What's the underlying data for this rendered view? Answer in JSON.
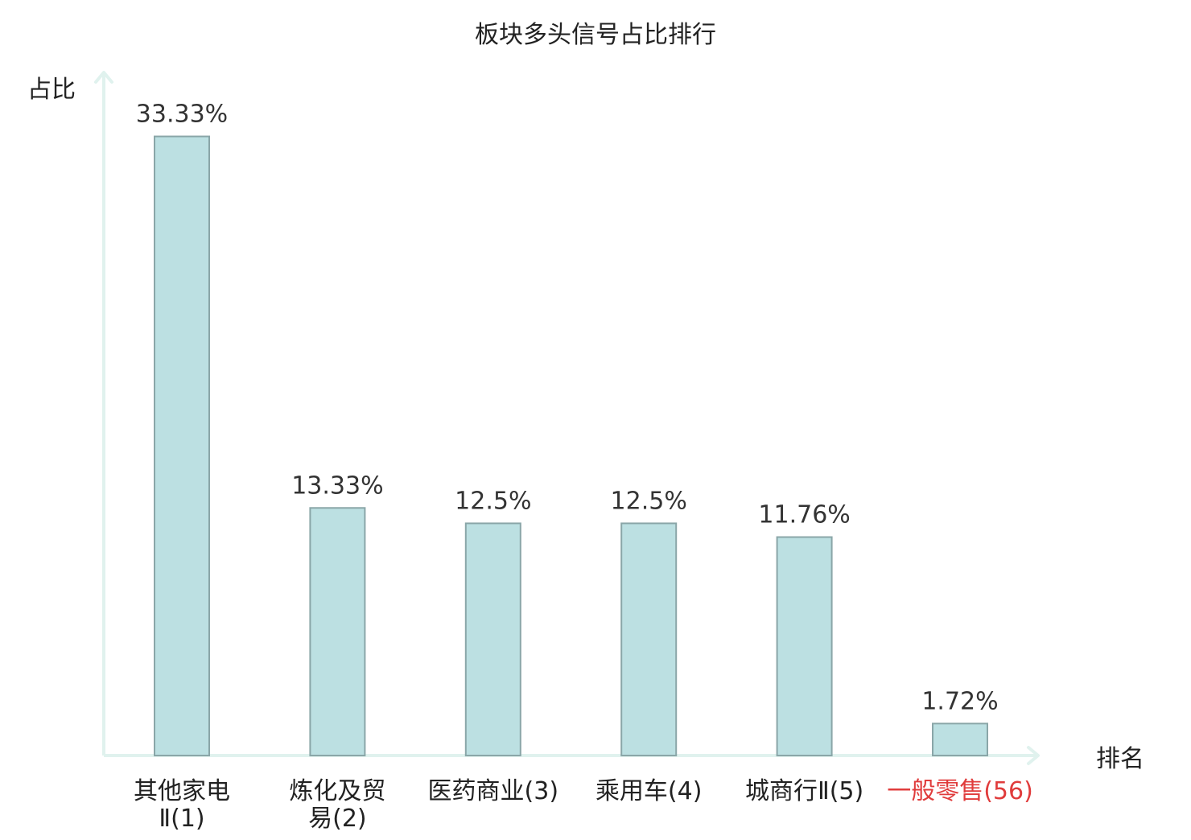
{
  "chart_data": {
    "type": "bar",
    "title": "板块多头信号占比排行",
    "xlabel": "排名",
    "ylabel": "占比",
    "categories": [
      [
        "其他家电",
        "Ⅱ(1)"
      ],
      [
        "炼化及贸",
        "易(2)"
      ],
      [
        "医药商业(3)"
      ],
      [
        "乘用车(4)"
      ],
      [
        "城商行Ⅱ(5)"
      ],
      [
        "一般零售(56)"
      ]
    ],
    "values": [
      33.33,
      13.33,
      12.5,
      12.5,
      11.76,
      1.72
    ],
    "value_labels": [
      "33.33%",
      "13.33%",
      "12.5%",
      "12.5%",
      "11.76%",
      "1.72%"
    ],
    "highlight_index": 5,
    "ylim": [
      0,
      35
    ],
    "grid": false,
    "legend": "none"
  },
  "colors": {
    "bar_fill": "#bce0e2",
    "bar_stroke": "#8aa6a8",
    "axis": "#e0f2ee",
    "text": "#333333",
    "highlight_text": "#e03c3c",
    "background": "#ffffff"
  }
}
